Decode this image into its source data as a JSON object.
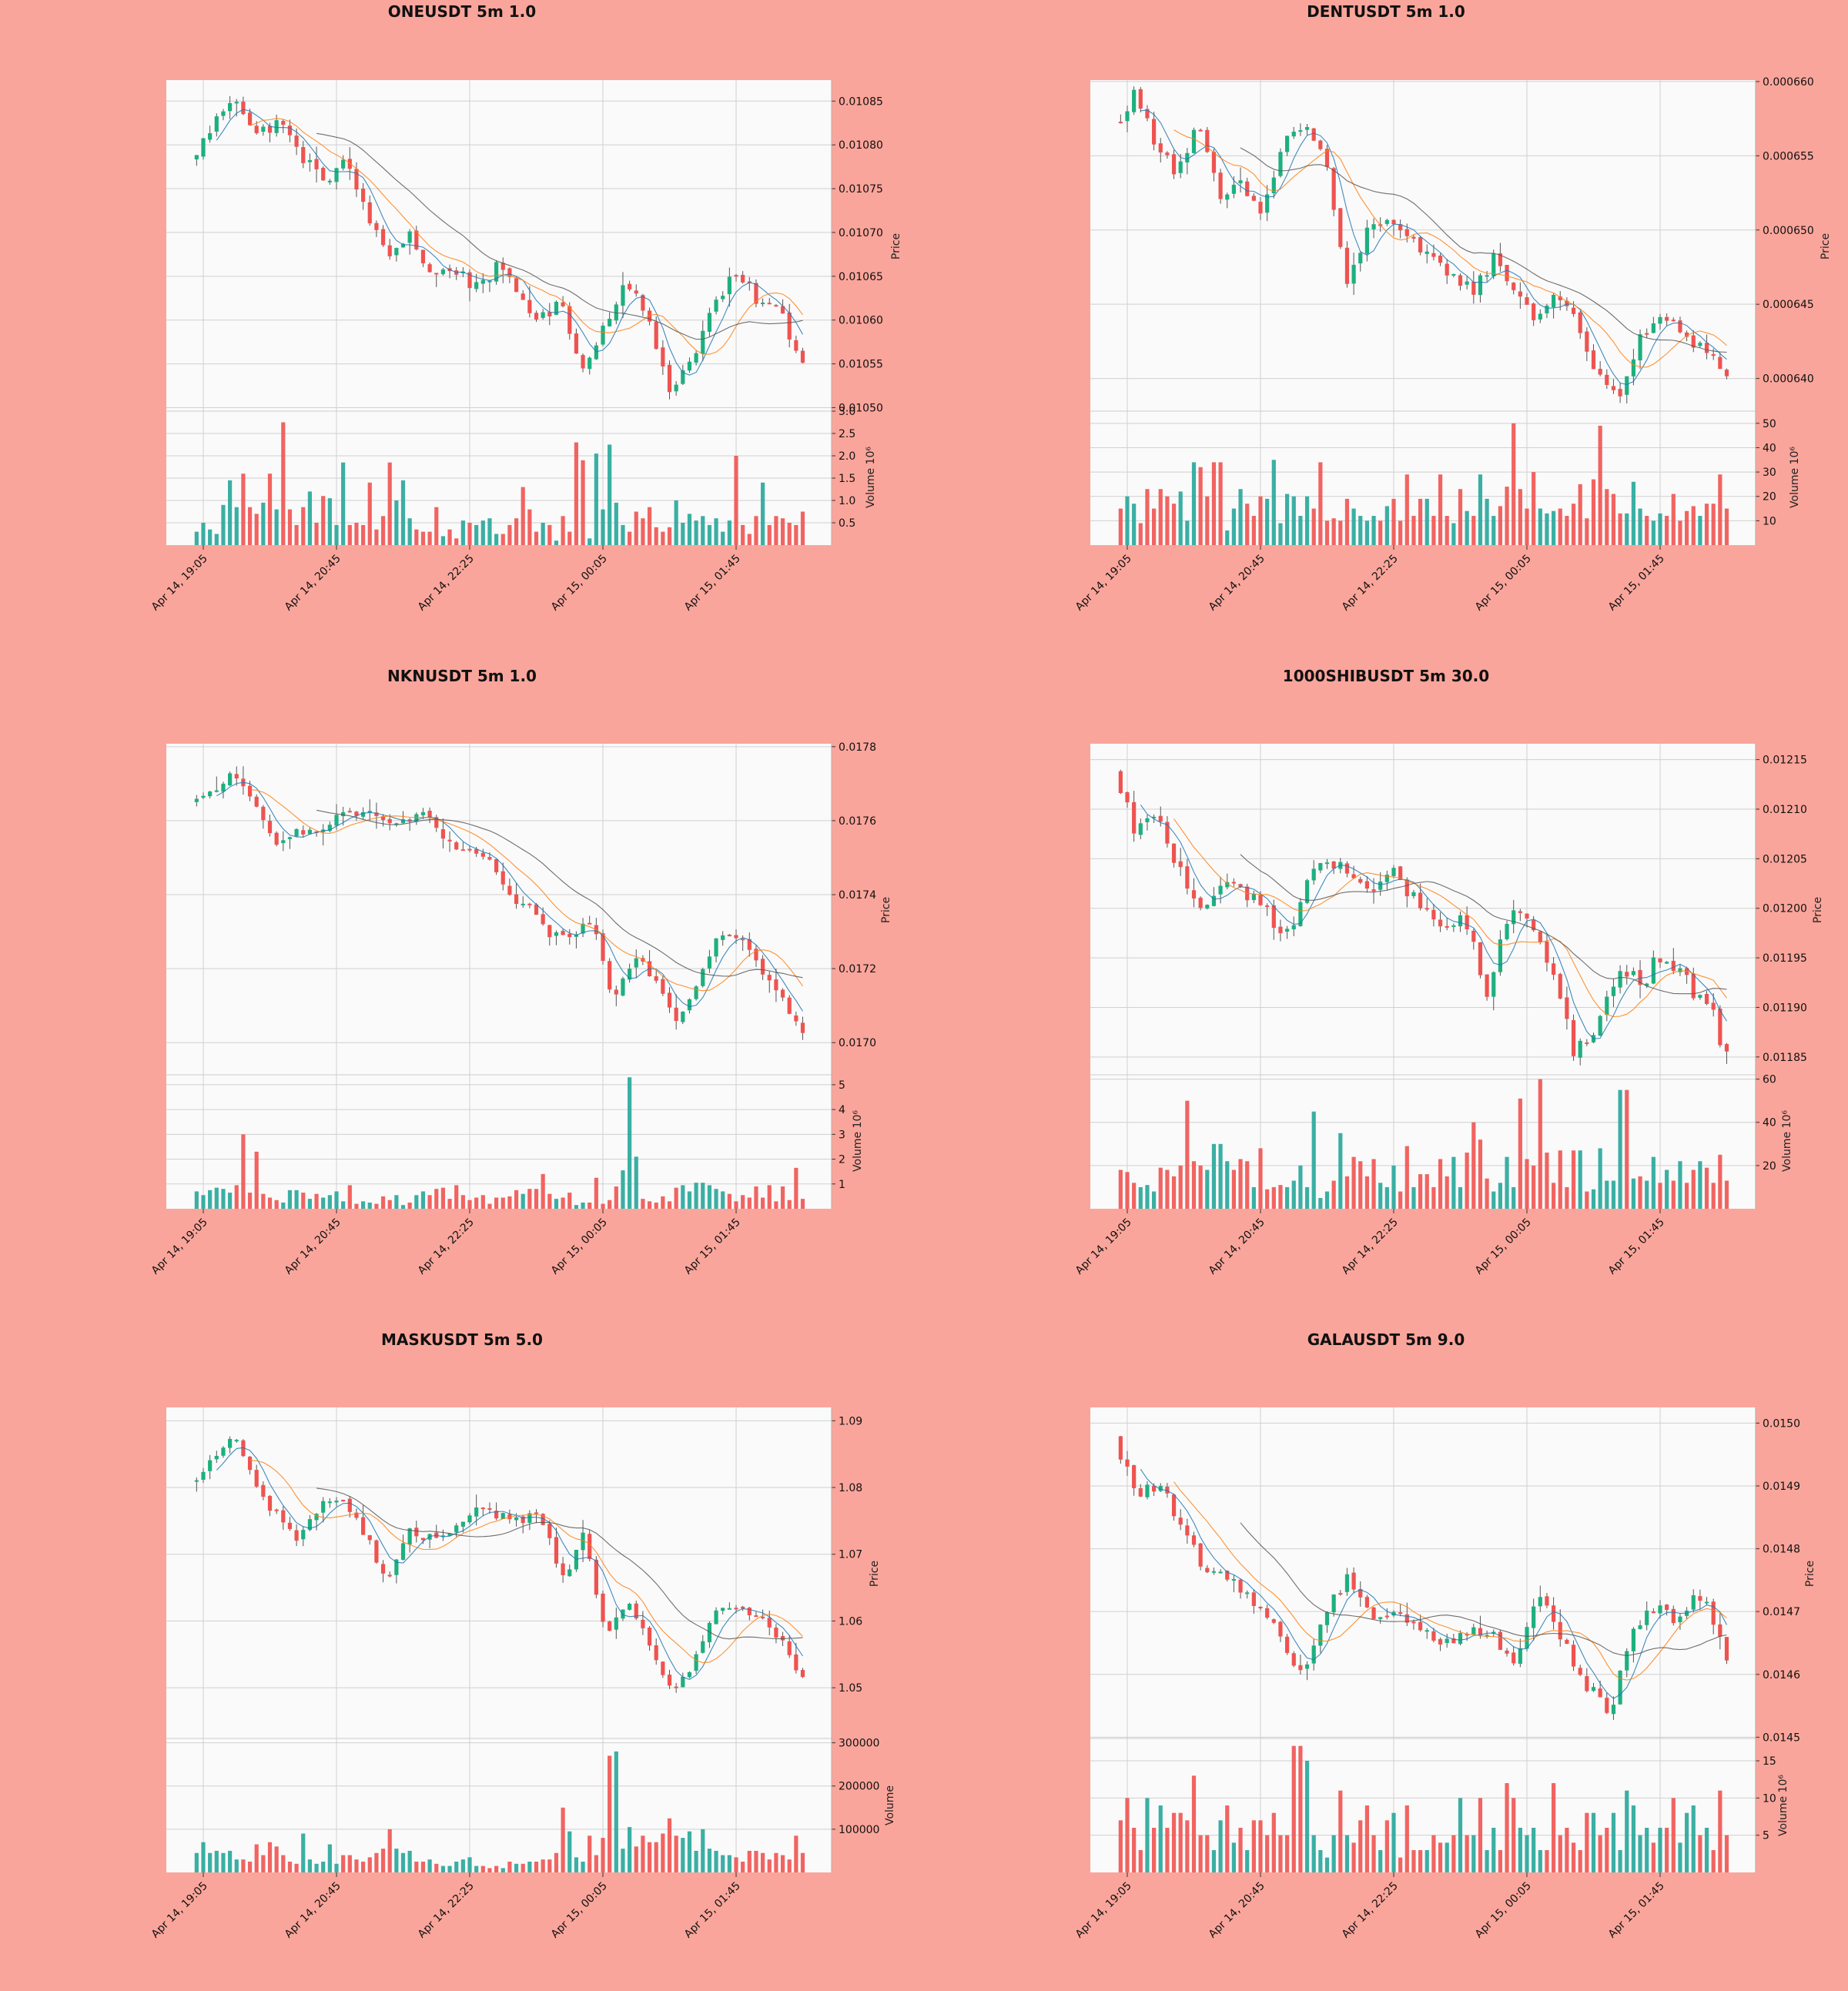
{
  "figure": {
    "background": "#faa59b",
    "panel_background": "#fafafa",
    "grid_color": "#d0d0d0",
    "up_color": "#26a69a",
    "up_body": "#1db07f",
    "down_color": "#ef5350",
    "ma_colors": [
      "#1f77b4",
      "#ff7f0e",
      "#555555"
    ]
  },
  "chart_data": [
    {
      "type": "candlestick",
      "title": "ONEUSDT 5m 1.0",
      "price_label": "Price",
      "volume_label": "Volume  10⁶",
      "x_ticks": [
        "Apr 14, 19:05",
        "Apr 14, 20:45",
        "Apr 14, 22:25",
        "Apr 15, 00:05",
        "Apr 15, 01:45"
      ],
      "x_range": [
        "Apr 14, 18:55",
        "Apr 15, 02:40"
      ],
      "price_ticks": [
        "0.01085",
        "0.01080",
        "0.01075",
        "0.01070",
        "0.01065",
        "0.01060",
        "0.01055",
        "0.01050"
      ],
      "price_range": [
        0.010496,
        0.010874
      ],
      "volume_ticks": [
        "3.0",
        "2.5",
        "2.0",
        "1.5",
        "1.0",
        "0.5"
      ],
      "volume_range": [
        0,
        3.0
      ],
      "path": [
        0.01078,
        0.01082,
        0.01086,
        0.01081,
        0.01083,
        0.01079,
        0.01076,
        0.01078,
        0.01073,
        0.01067,
        0.0107,
        0.01065,
        0.01066,
        0.01064,
        0.01066,
        0.01063,
        0.0106,
        0.01062,
        0.01054,
        0.0106,
        0.01065,
        0.01059,
        0.01052,
        0.01056,
        0.01062,
        0.01065,
        0.01062,
        0.01061,
        0.01055
      ],
      "volume": [
        0.55,
        0.3,
        0.5,
        0.35,
        0.25,
        0.9,
        1.45,
        0.85,
        1.6,
        0.85,
        0.7,
        0.95,
        1.6,
        0.8,
        2.75,
        0.8,
        0.45,
        0.85,
        1.2,
        0.5,
        1.1,
        1.05,
        0.45,
        1.85,
        0.45,
        0.5,
        0.45,
        1.4,
        0.35,
        0.65,
        1.85,
        1.0,
        1.45,
        0.6,
        0.35,
        0.3,
        0.3,
        0.85,
        0.2,
        0.35,
        0.15,
        0.55,
        0.5,
        0.45,
        0.55,
        0.6,
        0.25,
        0.45,
        0.6,
        1.3,
        0.8,
        0.3,
        0.5,
        0.45,
        0.1,
        0.65,
        0.3,
        2.3,
        1.9,
        0.15,
        2.05,
        0.8,
        2.25,
        0.95,
        0.45,
        0.3,
        0.75,
        0.6,
        0.85,
        0.4,
        0.3,
        0.4,
        1.0,
        0.5,
        0.7,
        0.55,
        0.65,
        0.45,
        0.6,
        0.3,
        0.55,
        2.0,
        0.45,
        0.25,
        0.65,
        1.4,
        0.45,
        0.65,
        0.6,
        0.5,
        0.45,
        0.75
      ]
    },
    {
      "type": "candlestick",
      "title": "DENTUSDT 5m 1.0",
      "price_label": "Price",
      "volume_label": "Volume  10⁶",
      "x_ticks": [
        "Apr 14, 19:05",
        "Apr 14, 20:45",
        "Apr 14, 22:25",
        "Apr 15, 00:05",
        "Apr 15, 01:45"
      ],
      "x_range": [
        "Apr 14, 18:55",
        "Apr 15, 02:40"
      ],
      "price_ticks": [
        "0.000660",
        "0.000655",
        "0.000650",
        "0.000645",
        "0.000640"
      ],
      "price_range": [
        0.0006378,
        0.0006601
      ],
      "volume_ticks": [
        "50",
        "40",
        "30",
        "20",
        "10"
      ],
      "volume_range": [
        0,
        55
      ],
      "path": [
        0.000657,
        0.000659,
        0.000656,
        0.000654,
        0.000657,
        0.000652,
        0.000653,
        0.000651,
        0.000656,
        0.000657,
        0.000655,
        0.000646,
        0.00065,
        0.000651,
        0.000649,
        0.000648,
        0.000647,
        0.000646,
        0.000648,
        0.000646,
        0.000644,
        0.000646,
        0.000643,
        0.00064,
        0.000639,
        0.000643,
        0.000644,
        0.000643,
        0.000642,
        0.00064
      ],
      "volume": [
        15,
        15,
        20,
        17,
        9,
        23,
        15,
        23,
        20,
        17,
        22,
        10,
        34,
        32,
        20,
        34,
        6,
        15,
        23,
        17,
        12,
        20,
        19,
        35,
        9,
        21,
        20,
        12,
        20,
        15,
        34,
        10,
        11,
        10,
        19,
        15,
        12,
        10,
        12,
        10,
        16,
        19,
        10,
        29,
        12,
        19,
        12,
        29,
        12,
        9,
        23,
        14,
        12,
        29,
        19,
        12,
        16,
        24,
        50,
        23,
        15,
        30,
        15,
        13,
        14,
        15,
        12,
        17,
        25,
        11,
        27,
        49,
        23,
        21,
        13,
        26,
        15,
        12,
        10,
        13,
        12,
        21,
        10,
        14,
        16,
        12,
        17,
        17,
        29,
        15
      ]
    },
    {
      "type": "candlestick",
      "title": "NKNUSDT 5m 1.0",
      "price_label": "Price",
      "volume_label": "Volume  10⁶",
      "x_ticks": [
        "Apr 14, 19:05",
        "Apr 14, 20:45",
        "Apr 14, 22:25",
        "Apr 15, 00:05",
        "Apr 15, 01:45"
      ],
      "x_range": [
        "Apr 14, 18:55",
        "Apr 15, 02:40"
      ],
      "price_ticks": [
        "0.0178",
        "0.0176",
        "0.0174",
        "0.0172",
        "0.0170"
      ],
      "price_range": [
        0.016913,
        0.017808
      ],
      "volume_ticks": [
        "5",
        "4",
        "3",
        "2",
        "1"
      ],
      "volume_range": [
        0,
        5.4
      ],
      "path": [
        0.01764,
        0.01768,
        0.01772,
        0.01765,
        0.01754,
        0.01758,
        0.01756,
        0.01762,
        0.01762,
        0.0176,
        0.01759,
        0.01763,
        0.01754,
        0.01752,
        0.0175,
        0.0174,
        0.01736,
        0.0173,
        0.01728,
        0.01734,
        0.01712,
        0.01724,
        0.01718,
        0.01706,
        0.01716,
        0.0173,
        0.01729,
        0.0172,
        0.01712,
        0.01702
      ],
      "volume": [
        1.05,
        0.7,
        0.55,
        0.75,
        0.85,
        0.8,
        0.65,
        0.95,
        3.0,
        0.65,
        2.3,
        0.6,
        0.45,
        0.35,
        0.25,
        0.75,
        0.65,
        0.4,
        0.6,
        0.45,
        0.55,
        0.7,
        0.3,
        0.95,
        0.2,
        0.3,
        0.25,
        0.2,
        0.5,
        0.35,
        0.55,
        0.15,
        0.25,
        0.55,
        0.7,
        0.55,
        0.8,
        0.85,
        0.4,
        0.95,
        0.55,
        0.35,
        0.45,
        0.55,
        0.2,
        0.45,
        0.5,
        0.75,
        0.6,
        0.8,
        0.8,
        1.4,
        0.6,
        0.4,
        0.45,
        0.65,
        0.15,
        0.25,
        0.25,
        1.25,
        0.2,
        0.35,
        0.9,
        1.55,
        5.3,
        2.1,
        0.4,
        0.3,
        0.25,
        0.5,
        0.3,
        0.85,
        0.95,
        0.7,
        1.05,
        0.95,
        0.8,
        0.7,
        0.6,
        0.3,
        0.55,
        0.45,
        0.9,
        0.45,
        0.95,
        0.3,
        0.9,
        0.35,
        1.65,
        0.4
      ]
    },
    {
      "type": "candlestick",
      "title": "1000SHIBUSDT 5m 30.0",
      "price_label": "Price",
      "volume_label": "Volume  10⁶",
      "x_ticks": [
        "Apr 14, 19:05",
        "Apr 14, 20:45",
        "Apr 14, 22:25",
        "Apr 15, 00:05",
        "Apr 15, 01:45"
      ],
      "x_range": [
        "Apr 14, 18:55",
        "Apr 15, 02:40"
      ],
      "price_ticks": [
        "0.01215",
        "0.01210",
        "0.01205",
        "0.01200",
        "0.01195",
        "0.01190",
        "0.01185"
      ],
      "price_range": [
        0.011832,
        0.012166
      ],
      "volume_ticks": [
        "60",
        "40",
        "20"
      ],
      "volume_range": [
        0,
        62
      ],
      "path": [
        0.01213,
        0.01208,
        0.01209,
        0.01204,
        0.012,
        0.01203,
        0.01201,
        0.012,
        0.01197,
        0.01204,
        0.01205,
        0.01202,
        0.01203,
        0.01203,
        0.012,
        0.01198,
        0.01199,
        0.01191,
        0.01199,
        0.01199,
        0.01194,
        0.01186,
        0.01187,
        0.01194,
        0.01192,
        0.01195,
        0.01193,
        0.01191,
        0.01185
      ],
      "volume": [
        7,
        18,
        17,
        12,
        10,
        11,
        8,
        19,
        18,
        15,
        20,
        50,
        22,
        20,
        18,
        30,
        22,
        18,
        23,
        22,
        10,
        28,
        9,
        10,
        11,
        10,
        13,
        20,
        10,
        45,
        5,
        8,
        13,
        35,
        15,
        24,
        22,
        15,
        23,
        12,
        10,
        20,
        8,
        29,
        10,
        16,
        10,
        23,
        15,
        24,
        10,
        26,
        40,
        32,
        14,
        8,
        12,
        24,
        10,
        51,
        23,
        20,
        60,
        26,
        12,
        27,
        10,
        27,
        27,
        8,
        9,
        28,
        13,
        13,
        55,
        14,
        15,
        13,
        24,
        12,
        18,
        13,
        22,
        12,
        18,
        22,
        19,
        12,
        25,
        13
      ]
    },
    {
      "type": "candlestick",
      "title": "MASKUSDT 5m 5.0",
      "price_label": "Price",
      "volume_label": "Volume",
      "x_ticks": [
        "Apr 14, 19:05",
        "Apr 14, 20:45",
        "Apr 14, 22:25",
        "Apr 15, 00:05",
        "Apr 15, 01:45"
      ],
      "x_range": [
        "Apr 14, 18:55",
        "Apr 15, 02:40"
      ],
      "price_ticks": [
        "1.09",
        "1.08",
        "1.07",
        "1.06",
        "1.05"
      ],
      "price_range": [
        1.0424,
        1.092
      ],
      "volume_ticks": [
        "300000",
        "200000",
        "100000"
      ],
      "volume_range": [
        0,
        310000
      ],
      "path": [
        1.08,
        1.084,
        1.088,
        1.08,
        1.076,
        1.072,
        1.078,
        1.078,
        1.073,
        1.066,
        1.073,
        1.072,
        1.074,
        1.077,
        1.076,
        1.075,
        1.076,
        1.066,
        1.073,
        1.058,
        1.062,
        1.057,
        1.049,
        1.054,
        1.061,
        1.062,
        1.061,
        1.057,
        1.051
      ],
      "volume": [
        70000,
        45000,
        70000,
        45000,
        50000,
        45000,
        50000,
        30000,
        25000,
        65000,
        40000,
        70000,
        60000,
        40000,
        25000,
        20000,
        90000,
        30000,
        20000,
        25000,
        65000,
        20000,
        40000,
        30000,
        25000,
        35000,
        45000,
        55000,
        100000,
        55000,
        45000,
        50000,
        25000,
        25000,
        30000,
        20000,
        15000,
        25000,
        30000,
        35000,
        15000,
        15000,
        10000,
        15000,
        10000,
        25000,
        20000,
        20000,
        25000,
        25000,
        30000,
        45000,
        150000,
        95000,
        35000,
        25000,
        85000,
        40000,
        80000,
        270000,
        280000,
        55000,
        105000,
        60000,
        85000,
        70000,
        90000,
        125000,
        85000,
        80000,
        95000,
        50000,
        100000,
        55000,
        50000,
        40000,
        40000,
        35000,
        25000,
        50000,
        45000,
        30000,
        45000,
        40000,
        30000,
        85000,
        45000
      ]
    },
    {
      "type": "candlestick",
      "title": "GALAUSDT 5m 9.0",
      "price_label": "Price",
      "volume_label": "Volume  10⁶",
      "x_ticks": [
        "Apr 14, 19:05",
        "Apr 14, 20:45",
        "Apr 14, 22:25",
        "Apr 15, 00:05",
        "Apr 15, 01:45"
      ],
      "x_range": [
        "Apr 14, 18:55",
        "Apr 15, 02:40"
      ],
      "price_ticks": [
        "0.0150",
        "0.0149",
        "0.0148",
        "0.0147",
        "0.0146",
        "0.0145"
      ],
      "price_range": [
        0.014498,
        0.015025
      ],
      "volume_ticks": [
        "15",
        "10",
        "5"
      ],
      "volume_range": [
        0,
        18
      ],
      "path": [
        0.01497,
        0.01489,
        0.0149,
        0.01482,
        0.01476,
        0.01475,
        0.01472,
        0.01466,
        0.0146,
        0.0147,
        0.01476,
        0.01469,
        0.0147,
        0.01467,
        0.01465,
        0.01467,
        0.01466,
        0.01462,
        0.01473,
        0.01466,
        0.01458,
        0.01454,
        0.01467,
        0.01471,
        0.01469,
        0.01473,
        0.01463
      ],
      "volume": [
        4,
        7,
        10,
        6,
        3,
        10,
        6,
        9,
        6,
        8,
        7,
        13,
        5,
        5,
        3,
        7,
        9,
        4,
        6,
        3,
        7,
        7,
        5,
        8,
        5,
        5,
        17,
        15,
        5,
        3,
        2,
        5,
        11,
        5,
        4,
        7,
        9,
        5,
        3,
        7,
        8,
        2,
        9,
        3,
        3,
        5,
        4,
        4,
        5,
        10,
        5,
        5,
        10,
        3,
        6,
        3,
        12,
        10,
        6,
        5,
        6,
        3,
        12,
        5,
        6,
        4,
        3,
        8,
        8,
        5,
        6,
        8,
        3,
        11,
        9,
        5,
        6,
        4,
        6,
        10,
        4,
        8,
        9,
        5,
        6,
        3,
        11,
        5
      ]
    }
  ]
}
